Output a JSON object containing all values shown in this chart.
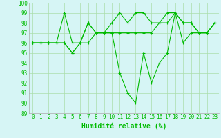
{
  "line1": [
    96,
    96,
    96,
    96,
    96,
    95,
    96,
    98,
    97,
    97,
    97,
    97,
    97,
    97,
    97,
    97,
    98,
    98,
    99,
    98,
    98,
    97,
    97,
    98
  ],
  "line2": [
    96,
    96,
    96,
    96,
    99,
    96,
    96,
    96,
    97,
    97,
    98,
    99,
    98,
    99,
    99,
    98,
    98,
    99,
    99,
    98,
    98,
    97,
    97,
    98
  ],
  "line3": [
    96,
    96,
    96,
    96,
    96,
    95,
    96,
    98,
    97,
    97,
    97,
    93,
    91,
    90,
    95,
    92,
    94,
    95,
    99,
    96,
    97,
    97,
    97,
    98
  ],
  "xlabel": "Humidité relative (%)",
  "ylabel": "",
  "xmin": 0,
  "xmax": 23,
  "ymin": 89,
  "ymax": 100,
  "yticks": [
    89,
    90,
    91,
    92,
    93,
    94,
    95,
    96,
    97,
    98,
    99,
    100
  ],
  "xticks": [
    0,
    1,
    2,
    3,
    4,
    5,
    6,
    7,
    8,
    9,
    10,
    11,
    12,
    13,
    14,
    15,
    16,
    17,
    18,
    19,
    20,
    21,
    22,
    23
  ],
  "line_color": "#00bb00",
  "bg_color": "#d6f5f5",
  "grid_color": "#aaddaa",
  "marker": "+",
  "markersize": 3,
  "linewidth": 0.8,
  "xlabel_fontsize": 7,
  "tick_fontsize": 5.5
}
